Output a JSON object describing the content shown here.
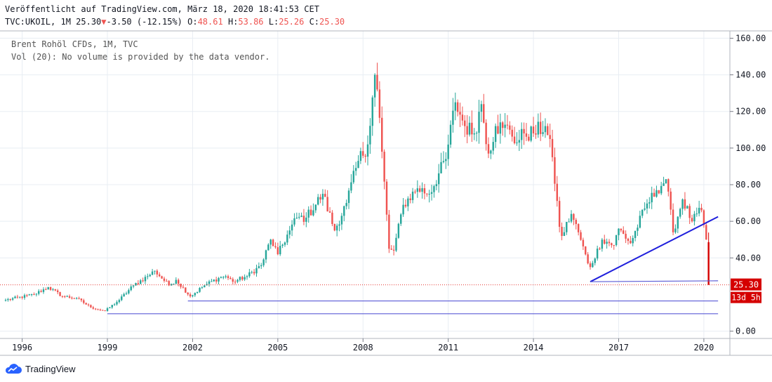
{
  "header": {
    "published": "Veröffentlicht auf TradingView.com, März 18, 2020 18:41:53 CET",
    "symbol": "TVC:UKOIL, 1M 25.30",
    "change_arrow": "▼",
    "change": "-3.50 (-12.15%)",
    "o_label": "O:",
    "o_value": "48.61",
    "h_label": "H:",
    "h_value": "53.86",
    "l_label": "L:",
    "l_value": "25.26",
    "c_label": "C:",
    "c_value": "25.30"
  },
  "legend": {
    "line1": "Brent Rohöl CFDs, 1M, TVC",
    "line2": "Vol (20): No volume is provided by the data vendor."
  },
  "footer": {
    "brand": "TradingView"
  },
  "colors": {
    "up": "#26a69a",
    "down": "#ef5350",
    "down_strong": "#d50000",
    "trendline": "#1f1fdc",
    "hline": "#5b5bd6",
    "price_line": "#e53935",
    "grid": "#e8edf3",
    "axis_text": "#131722"
  },
  "chart_data": {
    "type": "candlestick",
    "x_axis": {
      "type": "date",
      "range": [
        "1995-06-01",
        "2020-12-01"
      ],
      "tick_labels": [
        "1996",
        "1999",
        "2002",
        "2005",
        "2008",
        "2011",
        "2014",
        "2017",
        "2020"
      ]
    },
    "y_axis": {
      "range": [
        -4,
        164
      ],
      "position": "right",
      "tick_labels": [
        "0.00",
        "40.00",
        "60.00",
        "80.00",
        "100.00",
        "120.00",
        "140.00",
        "160.00"
      ]
    },
    "grid": true,
    "last_price": {
      "value": 25.3,
      "label": "25.30",
      "countdown": "13d 5h"
    },
    "anchors": [
      [
        "1995-06-01",
        17
      ],
      [
        "1996-06-01",
        20
      ],
      [
        "1996-12-01",
        24
      ],
      [
        "1997-06-01",
        19
      ],
      [
        "1997-12-01",
        18
      ],
      [
        "1998-06-01",
        13
      ],
      [
        "1998-12-01",
        11
      ],
      [
        "1999-06-01",
        17
      ],
      [
        "1999-12-01",
        25
      ],
      [
        "2000-06-01",
        30
      ],
      [
        "2000-09-01",
        33
      ],
      [
        "2001-03-01",
        25
      ],
      [
        "2001-06-01",
        28
      ],
      [
        "2001-12-01",
        19
      ],
      [
        "2002-06-01",
        25
      ],
      [
        "2002-12-01",
        29
      ],
      [
        "2003-03-01",
        30
      ],
      [
        "2003-06-01",
        27
      ],
      [
        "2003-12-01",
        30
      ],
      [
        "2004-06-01",
        36
      ],
      [
        "2004-10-01",
        50
      ],
      [
        "2005-01-01",
        42
      ],
      [
        "2005-06-01",
        55
      ],
      [
        "2005-09-01",
        62
      ],
      [
        "2006-01-01",
        62
      ],
      [
        "2006-08-01",
        75
      ],
      [
        "2007-01-01",
        55
      ],
      [
        "2007-06-01",
        70
      ],
      [
        "2007-11-01",
        93
      ],
      [
        "2008-03-01",
        102
      ],
      [
        "2008-06-01",
        140
      ],
      [
        "2008-07-01",
        132
      ],
      [
        "2008-09-01",
        98
      ],
      [
        "2008-12-01",
        45
      ],
      [
        "2009-02-01",
        44
      ],
      [
        "2009-06-01",
        69
      ],
      [
        "2009-12-01",
        78
      ],
      [
        "2010-05-01",
        75
      ],
      [
        "2010-12-01",
        94
      ],
      [
        "2011-04-01",
        125
      ],
      [
        "2011-08-01",
        112
      ],
      [
        "2011-12-01",
        108
      ],
      [
        "2012-03-01",
        124
      ],
      [
        "2012-06-01",
        97
      ],
      [
        "2012-09-01",
        112
      ],
      [
        "2012-12-01",
        111
      ],
      [
        "2013-03-01",
        110
      ],
      [
        "2013-06-01",
        103
      ],
      [
        "2013-09-01",
        108
      ],
      [
        "2014-01-01",
        108
      ],
      [
        "2014-06-01",
        112
      ],
      [
        "2014-09-01",
        95
      ],
      [
        "2014-12-01",
        57
      ],
      [
        "2015-01-01",
        52
      ],
      [
        "2015-05-01",
        64
      ],
      [
        "2015-08-01",
        54
      ],
      [
        "2015-12-01",
        37
      ],
      [
        "2016-01-01",
        35
      ],
      [
        "2016-06-01",
        50
      ],
      [
        "2016-11-01",
        47
      ],
      [
        "2017-01-01",
        56
      ],
      [
        "2017-06-01",
        48
      ],
      [
        "2017-12-01",
        67
      ],
      [
        "2018-05-01",
        77
      ],
      [
        "2018-09-01",
        83
      ],
      [
        "2018-12-01",
        54
      ],
      [
        "2019-04-01",
        72
      ],
      [
        "2019-08-01",
        60
      ],
      [
        "2019-12-01",
        66
      ],
      [
        "2020-01-01",
        58
      ],
      [
        "2020-02-01",
        50
      ],
      [
        "2020-03-01",
        25.3
      ]
    ],
    "drawings": {
      "trendline": {
        "from": [
          "2016-01-01",
          27
        ],
        "to": [
          "2020-07-01",
          62.5
        ]
      },
      "hlines": [
        {
          "from": [
            "2016-01-01",
            27
          ],
          "to": [
            "2020-07-01",
            27.5
          ]
        },
        {
          "from": [
            "2001-11-01",
            16.5
          ],
          "to": [
            "2020-07-01",
            16.5
          ]
        },
        {
          "from": [
            "1999-01-01",
            9.5
          ],
          "to": [
            "2020-07-01",
            9.5
          ]
        }
      ]
    }
  }
}
